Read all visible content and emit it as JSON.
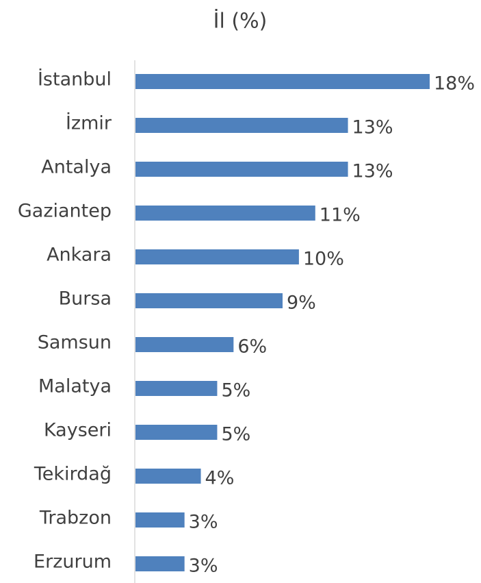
{
  "chart_data": {
    "type": "bar",
    "orientation": "horizontal",
    "title": "İl (%)",
    "categories": [
      "İstanbul",
      "İzmir",
      "Antalya",
      "Gaziantep",
      "Ankara",
      "Bursa",
      "Samsun",
      "Malatya",
      "Kayseri",
      "Tekirdağ",
      "Trabzon",
      "Erzurum"
    ],
    "values": [
      18,
      13,
      13,
      11,
      10,
      9,
      6,
      5,
      5,
      4,
      3,
      3
    ],
    "value_labels": [
      "18%",
      "13%",
      "13%",
      "11%",
      "10%",
      "9%",
      "6%",
      "5%",
      "5%",
      "4%",
      "3%",
      "3%"
    ],
    "color": "#4f81bd",
    "xlim": [
      0,
      18
    ]
  }
}
